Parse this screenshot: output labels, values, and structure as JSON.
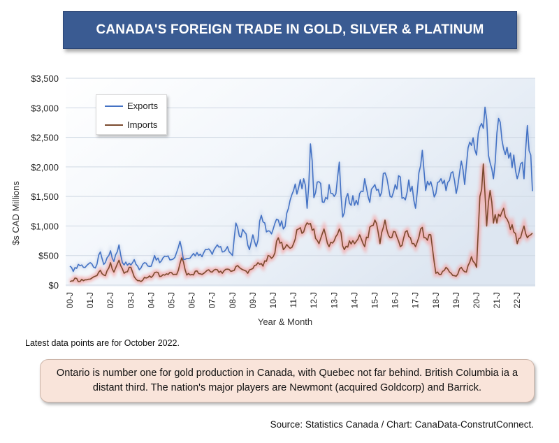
{
  "title": "CANADA'S FOREIGN TRADE IN GOLD, SILVER & PLATINUM",
  "note": "Latest data points are for October 2022.",
  "callout": "Ontario is number one for gold production in Canada, with Quebec not far behind. British Columbia ia a distant third. The nation's major players are Newmont (acquired Goldcorp) and Barrick.",
  "source": "Source: Statistics Canada / Chart: CanaData-ConstrutConnect.",
  "colors": {
    "exports": "#4472c4",
    "imports": "#7b4a2e",
    "imports_glow": "#f4a6a6",
    "exports_glow": "#c5d2ea"
  },
  "chart_data": {
    "type": "line",
    "xlabel": "Year & Month",
    "ylabel": "$s CAD Millions",
    "ylim": [
      0,
      3500
    ],
    "yticks": [
      "$0",
      "$500",
      "$1,000",
      "$1,500",
      "$2,000",
      "$2,500",
      "$3,000",
      "$3,500"
    ],
    "x_tick_labels": [
      "00-J",
      "01-J",
      "02-J",
      "03-J",
      "04-J",
      "05-J",
      "06-J",
      "07-J",
      "08-J",
      "09-J",
      "10-J",
      "11-J",
      "12-J",
      "13-J",
      "14-J",
      "15-J",
      "16-J",
      "17-J",
      "18-J",
      "19-J",
      "20-J",
      "21-J",
      "22-J"
    ],
    "grid": true,
    "legend_position": "top-left",
    "x_start": "2000-01",
    "x_end": "2022-10",
    "series": [
      {
        "name": "Exports",
        "anchors": [
          [
            "2000-01",
            320
          ],
          [
            "2000-03",
            230
          ],
          [
            "2000-06",
            350
          ],
          [
            "2000-09",
            300
          ],
          [
            "2001-01",
            380
          ],
          [
            "2001-04",
            290
          ],
          [
            "2001-07",
            560
          ],
          [
            "2001-09",
            350
          ],
          [
            "2002-01",
            580
          ],
          [
            "2002-03",
            400
          ],
          [
            "2002-06",
            680
          ],
          [
            "2002-08",
            380
          ],
          [
            "2003-01",
            340
          ],
          [
            "2003-03",
            430
          ],
          [
            "2003-06",
            260
          ],
          [
            "2003-09",
            380
          ],
          [
            "2004-01",
            320
          ],
          [
            "2004-03",
            500
          ],
          [
            "2004-06",
            380
          ],
          [
            "2004-09",
            490
          ],
          [
            "2005-01",
            430
          ],
          [
            "2005-03",
            470
          ],
          [
            "2005-06",
            740
          ],
          [
            "2005-08",
            430
          ],
          [
            "2006-01",
            500
          ],
          [
            "2006-04",
            550
          ],
          [
            "2006-07",
            480
          ],
          [
            "2006-10",
            600
          ],
          [
            "2007-01",
            520
          ],
          [
            "2007-04",
            680
          ],
          [
            "2007-07",
            560
          ],
          [
            "2007-10",
            650
          ],
          [
            "2008-01",
            500
          ],
          [
            "2008-03",
            1050
          ],
          [
            "2008-05",
            830
          ],
          [
            "2008-08",
            900
          ],
          [
            "2008-11",
            600
          ],
          [
            "2009-01",
            850
          ],
          [
            "2009-03",
            650
          ],
          [
            "2009-06",
            1180
          ],
          [
            "2009-09",
            900
          ],
          [
            "2010-01",
            950
          ],
          [
            "2010-04",
            1100
          ],
          [
            "2010-07",
            950
          ],
          [
            "2010-10",
            1300
          ],
          [
            "2011-01",
            1600
          ],
          [
            "2011-04",
            1650
          ],
          [
            "2011-07",
            1800
          ],
          [
            "2011-09",
            1300
          ],
          [
            "2011-11",
            2390
          ],
          [
            "2012-01",
            1480
          ],
          [
            "2012-04",
            1750
          ],
          [
            "2012-07",
            1400
          ],
          [
            "2012-10",
            1700
          ],
          [
            "2013-01",
            1500
          ],
          [
            "2013-04",
            2080
          ],
          [
            "2013-06",
            1150
          ],
          [
            "2013-09",
            1550
          ],
          [
            "2014-01",
            1350
          ],
          [
            "2014-04",
            1550
          ],
          [
            "2014-07",
            1800
          ],
          [
            "2014-10",
            1400
          ],
          [
            "2015-01",
            1700
          ],
          [
            "2015-04",
            1500
          ],
          [
            "2015-07",
            1900
          ],
          [
            "2015-10",
            1500
          ],
          [
            "2016-01",
            1700
          ],
          [
            "2016-03",
            1850
          ],
          [
            "2016-06",
            1480
          ],
          [
            "2016-09",
            1780
          ],
          [
            "2017-01",
            1300
          ],
          [
            "2017-03",
            1900
          ],
          [
            "2017-05",
            2280
          ],
          [
            "2017-07",
            1600
          ],
          [
            "2017-10",
            1750
          ],
          [
            "2018-01",
            1550
          ],
          [
            "2018-04",
            1800
          ],
          [
            "2018-07",
            1600
          ],
          [
            "2018-10",
            1900
          ],
          [
            "2019-01",
            1550
          ],
          [
            "2019-04",
            2100
          ],
          [
            "2019-06",
            1700
          ],
          [
            "2019-09",
            2420
          ],
          [
            "2020-01",
            2200
          ],
          [
            "2020-03",
            2680
          ],
          [
            "2020-06",
            3010
          ],
          [
            "2020-08",
            2200
          ],
          [
            "2020-11",
            1800
          ],
          [
            "2021-02",
            2820
          ],
          [
            "2021-05",
            2300
          ],
          [
            "2021-08",
            2150
          ],
          [
            "2021-11",
            2200
          ],
          [
            "2022-01",
            1800
          ],
          [
            "2022-03",
            2050
          ],
          [
            "2022-05",
            1800
          ],
          [
            "2022-07",
            2700
          ],
          [
            "2022-09",
            2200
          ],
          [
            "2022-10",
            1590
          ]
        ]
      },
      {
        "name": "Imports",
        "anchors": [
          [
            "2000-01",
            60
          ],
          [
            "2000-04",
            120
          ],
          [
            "2000-07",
            60
          ],
          [
            "2000-10",
            90
          ],
          [
            "2001-01",
            100
          ],
          [
            "2001-04",
            150
          ],
          [
            "2001-07",
            250
          ],
          [
            "2001-10",
            160
          ],
          [
            "2002-01",
            380
          ],
          [
            "2002-03",
            220
          ],
          [
            "2002-06",
            420
          ],
          [
            "2002-09",
            200
          ],
          [
            "2003-01",
            300
          ],
          [
            "2003-04",
            100
          ],
          [
            "2003-07",
            60
          ],
          [
            "2003-10",
            120
          ],
          [
            "2004-01",
            130
          ],
          [
            "2004-04",
            220
          ],
          [
            "2004-07",
            150
          ],
          [
            "2004-10",
            190
          ],
          [
            "2005-01",
            210
          ],
          [
            "2005-04",
            180
          ],
          [
            "2005-07",
            460
          ],
          [
            "2005-10",
            170
          ],
          [
            "2006-01",
            180
          ],
          [
            "2006-04",
            240
          ],
          [
            "2006-07",
            180
          ],
          [
            "2006-10",
            250
          ],
          [
            "2007-01",
            220
          ],
          [
            "2007-04",
            260
          ],
          [
            "2007-07",
            200
          ],
          [
            "2007-10",
            270
          ],
          [
            "2008-01",
            240
          ],
          [
            "2008-04",
            330
          ],
          [
            "2008-07",
            260
          ],
          [
            "2008-10",
            200
          ],
          [
            "2009-01",
            280
          ],
          [
            "2009-04",
            380
          ],
          [
            "2009-07",
            320
          ],
          [
            "2009-10",
            500
          ],
          [
            "2010-01",
            480
          ],
          [
            "2010-04",
            800
          ],
          [
            "2010-07",
            600
          ],
          [
            "2010-10",
            650
          ],
          [
            "2011-01",
            700
          ],
          [
            "2011-04",
            950
          ],
          [
            "2011-07",
            900
          ],
          [
            "2011-10",
            1030
          ],
          [
            "2012-01",
            950
          ],
          [
            "2012-04",
            700
          ],
          [
            "2012-07",
            950
          ],
          [
            "2012-10",
            650
          ],
          [
            "2013-01",
            750
          ],
          [
            "2013-04",
            950
          ],
          [
            "2013-07",
            600
          ],
          [
            "2013-10",
            750
          ],
          [
            "2014-01",
            700
          ],
          [
            "2014-04",
            850
          ],
          [
            "2014-07",
            650
          ],
          [
            "2014-10",
            980
          ],
          [
            "2015-01",
            1100
          ],
          [
            "2015-04",
            700
          ],
          [
            "2015-07",
            1100
          ],
          [
            "2015-10",
            800
          ],
          [
            "2016-01",
            900
          ],
          [
            "2016-04",
            650
          ],
          [
            "2016-07",
            900
          ],
          [
            "2016-10",
            800
          ],
          [
            "2017-01",
            650
          ],
          [
            "2017-04",
            950
          ],
          [
            "2017-07",
            800
          ],
          [
            "2017-10",
            850
          ],
          [
            "2018-01",
            200
          ],
          [
            "2018-04",
            180
          ],
          [
            "2018-07",
            300
          ],
          [
            "2018-10",
            200
          ],
          [
            "2019-01",
            150
          ],
          [
            "2019-04",
            300
          ],
          [
            "2019-07",
            220
          ],
          [
            "2019-10",
            480
          ],
          [
            "2020-01",
            300
          ],
          [
            "2020-03",
            1500
          ],
          [
            "2020-05",
            2050
          ],
          [
            "2020-07",
            1000
          ],
          [
            "2020-09",
            1600
          ],
          [
            "2020-11",
            1050
          ],
          [
            "2021-02",
            1200
          ],
          [
            "2021-05",
            1300
          ],
          [
            "2021-08",
            1050
          ],
          [
            "2021-11",
            900
          ],
          [
            "2022-01",
            700
          ],
          [
            "2022-03",
            800
          ],
          [
            "2022-05",
            1000
          ],
          [
            "2022-07",
            800
          ],
          [
            "2022-09",
            850
          ],
          [
            "2022-10",
            880
          ]
        ]
      }
    ]
  }
}
